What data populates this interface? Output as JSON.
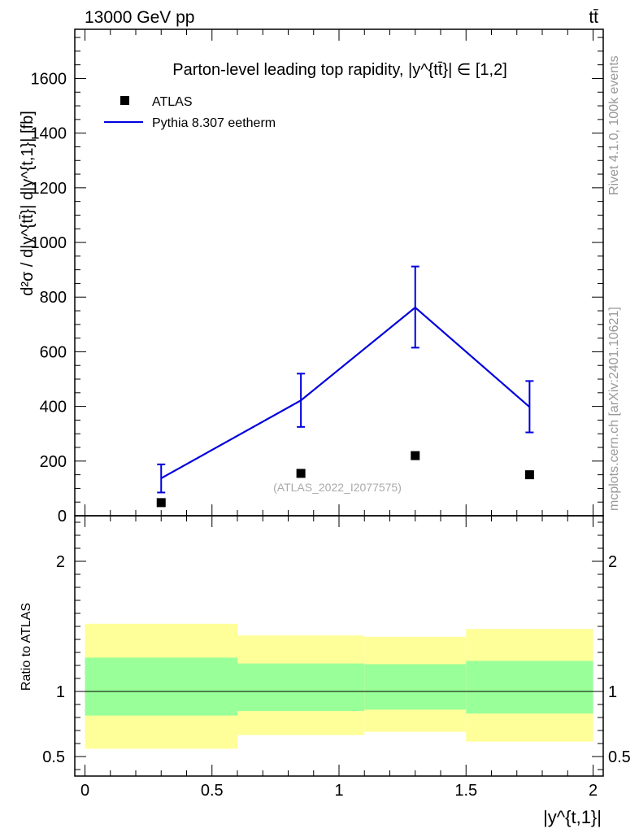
{
  "header": {
    "energy_label": "13000 GeV pp",
    "process_label": "tt̄"
  },
  "side": {
    "rivet_label": "Rivet 4.1.0,  100k events",
    "source_label": "mcplots.cern.ch [arXiv:2401.10621]"
  },
  "chart_data": [
    {
      "type": "scatter",
      "panel": "main",
      "title": "Parton-level leading top rapidity, |y^{tt̄}| ∈ [1,2]",
      "ylabel": "d²σ / d|y^{tt̄}| d|y^{t,1}| [fb]",
      "xlabel": "",
      "xlim": [
        -0.04,
        2.04
      ],
      "ylim": [
        0,
        1780
      ],
      "yticks": [
        0,
        200,
        400,
        600,
        800,
        1000,
        1200,
        1400,
        1600
      ],
      "ytick_labels": [
        "0",
        "200",
        "400",
        "600",
        "800",
        "1000",
        "1200",
        "1400",
        "1600"
      ],
      "watermark": "(ATLAS_2022_I2077575)",
      "legend": {
        "placement": "top-left",
        "entries": [
          "ATLAS",
          "Pythia 8.307 eetherm"
        ]
      },
      "series": [
        {
          "name": "ATLAS",
          "kind": "markers",
          "color": "#000000",
          "x": [
            0.3,
            0.85,
            1.3,
            1.75
          ],
          "y": [
            48,
            155,
            220,
            150
          ]
        },
        {
          "name": "Pythia 8.307 eetherm",
          "kind": "line",
          "color": "#0000dd",
          "x": [
            0.3,
            0.85,
            1.3,
            1.75
          ],
          "y": [
            137,
            422,
            762,
            398
          ],
          "err_low": [
            85,
            325,
            615,
            305
          ],
          "err_high": [
            188,
            520,
            912,
            493
          ]
        }
      ]
    },
    {
      "type": "area",
      "panel": "ratio",
      "ylabel": "Ratio to ATLAS",
      "xlabel": "|y^{t,1}|",
      "xlim": [
        -0.04,
        2.04
      ],
      "ylim": [
        0.35,
        2.35
      ],
      "xticks": [
        0,
        0.5,
        1,
        1.5,
        2
      ],
      "xtick_labels": [
        "0",
        "0.5",
        "1",
        "1.5",
        "2"
      ],
      "yticks": [
        0.5,
        1,
        2
      ],
      "ytick_labels": [
        "0.5",
        "1",
        "2"
      ],
      "reference_line": 1.0,
      "bins": [
        {
          "x_low": 0.0,
          "x_high": 0.6,
          "inner_low": 0.815,
          "inner_high": 1.26,
          "outer_low": 0.56,
          "outer_high": 1.52
        },
        {
          "x_low": 0.6,
          "x_high": 1.1,
          "inner_low": 0.85,
          "inner_high": 1.215,
          "outer_low": 0.665,
          "outer_high": 1.43
        },
        {
          "x_low": 1.1,
          "x_high": 1.5,
          "inner_low": 0.86,
          "inner_high": 1.21,
          "outer_low": 0.69,
          "outer_high": 1.42
        },
        {
          "x_low": 1.5,
          "x_high": 2.0,
          "inner_low": 0.83,
          "inner_high": 1.235,
          "outer_low": 0.615,
          "outer_high": 1.48
        }
      ],
      "band_colors": {
        "inner": "#99ff99",
        "outer": "#ffff99"
      }
    }
  ]
}
